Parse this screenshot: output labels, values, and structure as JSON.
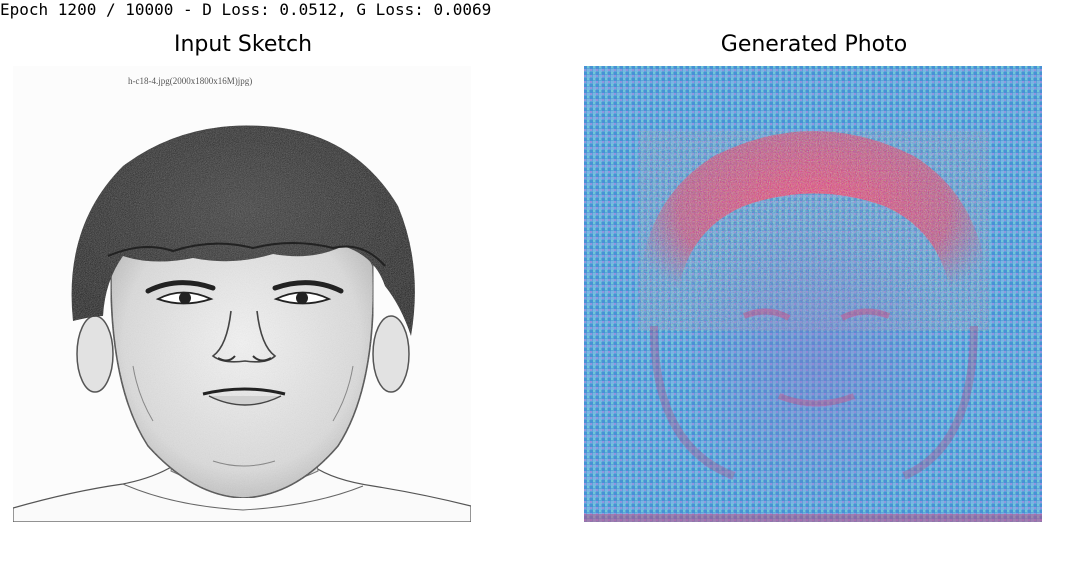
{
  "log": {
    "text": "Epoch 1200 / 10000 - D Loss: 0.0512, G Loss: 0.0069"
  },
  "panels": [
    {
      "title": "Input Sketch",
      "image": "pencil-sketch-portrait",
      "caption_text": "h-c18-4.jpg(2000x1800x16M)jpg)"
    },
    {
      "title": "Generated Photo",
      "image": "noisy-generated-face"
    }
  ]
}
